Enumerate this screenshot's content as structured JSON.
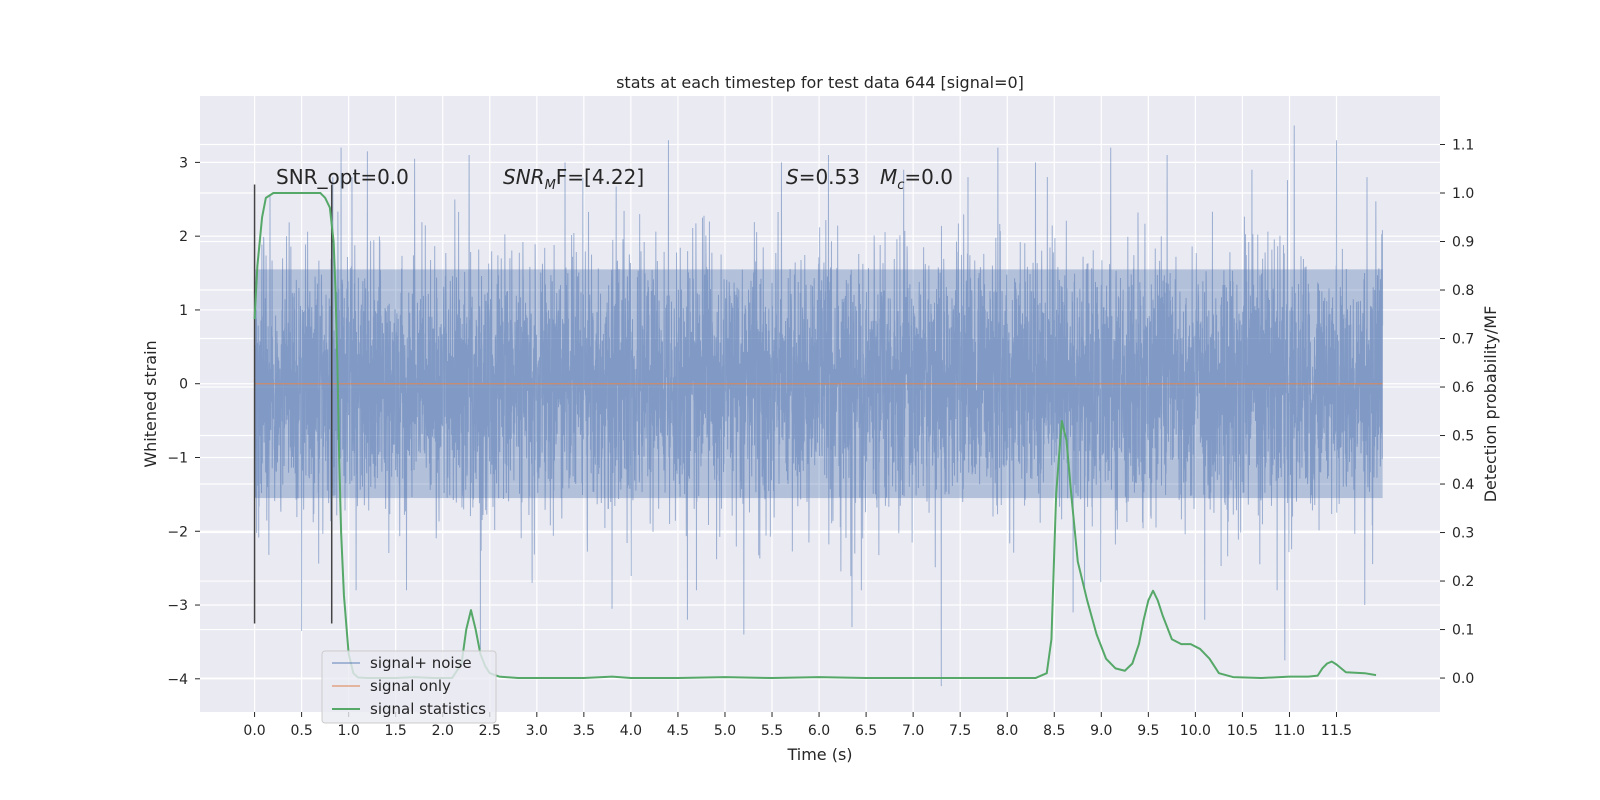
{
  "chart_data": {
    "type": "line",
    "title": "stats at each timestep for test data 644 [signal=0]",
    "xlabel": "Time (s)",
    "ylabel": "Whitened strain",
    "y2label": "Detection probability/MF",
    "xlim": [
      -0.58,
      12.6
    ],
    "ylim": [
      -4.45,
      3.9
    ],
    "y2lim": [
      -0.07,
      1.2
    ],
    "grid": true,
    "legend_placement": "lower-left",
    "xticks": [
      0.0,
      0.5,
      1.0,
      1.5,
      2.0,
      2.5,
      3.0,
      3.5,
      4.0,
      4.5,
      5.0,
      5.5,
      6.0,
      6.5,
      7.0,
      7.5,
      8.0,
      8.5,
      9.0,
      9.5,
      10.0,
      10.5,
      11.0,
      11.5
    ],
    "xtick_labels": [
      "0.0",
      "0.5",
      "1.0",
      "1.5",
      "2.0",
      "2.5",
      "3.0",
      "3.5",
      "4.0",
      "4.5",
      "5.0",
      "5.5",
      "6.0",
      "6.5",
      "7.0",
      "7.5",
      "8.0",
      "8.5",
      "9.0",
      "9.5",
      "10.0",
      "10.5",
      "11.0",
      "11.5"
    ],
    "yticks": [
      3,
      2,
      1,
      0,
      -1,
      -2,
      -3,
      -4
    ],
    "ytick_labels": [
      "3",
      "2",
      "1",
      "0",
      "−1",
      "−2",
      "−3",
      "−4"
    ],
    "y2ticks": [
      1.1,
      1.0,
      0.9,
      0.8,
      0.7,
      0.6,
      0.5,
      0.4,
      0.3,
      0.2,
      0.1,
      0.0
    ],
    "y2tick_labels": [
      "1.1",
      "1.0",
      "0.9",
      "0.8",
      "0.7",
      "0.6",
      "0.5",
      "0.4",
      "0.3",
      "0.2",
      "0.1",
      "0.0"
    ],
    "annotations": {
      "snr_opt": "SNR_opt=0.0",
      "snr_mf_main": "SNR",
      "snr_mf_sub": "M",
      "snr_mf_rest": "F=[4.22]",
      "s_main": "S",
      "s_rest": "=0.53",
      "mc_main": "M",
      "mc_sub": "c",
      "mc_rest": "=0.0"
    },
    "vlines": [
      {
        "x": 0.0,
        "ymin": -3.25,
        "ymax": 2.7
      },
      {
        "x": 0.82,
        "ymin": -3.25,
        "ymax": 2.7
      }
    ],
    "series": [
      {
        "name": "signal+ noise",
        "color": "#4c72b0",
        "axis": "left",
        "t_start": 0.0,
        "t_end": 11.99,
        "envelope_upper": 1.55,
        "envelope_lower": -1.55,
        "extremes": [
          {
            "x": 0.34,
            "y": 2.0
          },
          {
            "x": 0.5,
            "y": -3.35
          },
          {
            "x": 0.92,
            "y": 3.2
          },
          {
            "x": 1.2,
            "y": 3.15
          },
          {
            "x": 1.7,
            "y": 3.05
          },
          {
            "x": 2.28,
            "y": 3.1
          },
          {
            "x": 2.4,
            "y": -3.6
          },
          {
            "x": 2.95,
            "y": -2.7
          },
          {
            "x": 3.3,
            "y": 3.0
          },
          {
            "x": 3.8,
            "y": -3.05
          },
          {
            "x": 4.4,
            "y": 3.3
          },
          {
            "x": 4.6,
            "y": -3.2
          },
          {
            "x": 5.2,
            "y": -3.4
          },
          {
            "x": 5.6,
            "y": 3.0
          },
          {
            "x": 6.1,
            "y": 3.1
          },
          {
            "x": 6.35,
            "y": -3.3
          },
          {
            "x": 6.9,
            "y": 2.9
          },
          {
            "x": 7.3,
            "y": -4.1
          },
          {
            "x": 7.9,
            "y": 3.2
          },
          {
            "x": 8.3,
            "y": 3.0
          },
          {
            "x": 8.7,
            "y": -3.1
          },
          {
            "x": 9.1,
            "y": 3.2
          },
          {
            "x": 9.7,
            "y": 3.1
          },
          {
            "x": 10.1,
            "y": -3.2
          },
          {
            "x": 10.6,
            "y": 2.9
          },
          {
            "x": 10.95,
            "y": -3.75
          },
          {
            "x": 11.05,
            "y": 3.5
          },
          {
            "x": 11.5,
            "y": 3.3
          },
          {
            "x": 11.8,
            "y": -3.0
          }
        ]
      },
      {
        "name": "signal only",
        "color": "#dd8452",
        "axis": "left",
        "x": [
          0.0,
          11.99
        ],
        "y": [
          0.0,
          0.0
        ]
      },
      {
        "name": "signal statistics",
        "color": "#55a868",
        "axis": "right",
        "x": [
          0.0,
          0.03,
          0.08,
          0.12,
          0.2,
          0.3,
          0.4,
          0.5,
          0.6,
          0.7,
          0.75,
          0.8,
          0.84,
          0.86,
          0.88,
          0.9,
          0.92,
          0.95,
          1.0,
          1.05,
          1.1,
          1.2,
          1.5,
          1.7,
          1.9,
          2.1,
          2.2,
          2.25,
          2.3,
          2.35,
          2.4,
          2.45,
          2.5,
          2.6,
          2.8,
          3.2,
          3.5,
          3.8,
          4.0,
          4.5,
          5.0,
          5.5,
          6.0,
          6.5,
          7.0,
          7.5,
          8.0,
          8.3,
          8.42,
          8.47,
          8.52,
          8.58,
          8.63,
          8.68,
          8.75,
          8.85,
          8.95,
          9.05,
          9.15,
          9.25,
          9.33,
          9.4,
          9.45,
          9.5,
          9.55,
          9.6,
          9.65,
          9.75,
          9.85,
          9.95,
          10.05,
          10.15,
          10.25,
          10.4,
          10.7,
          11.0,
          11.2,
          11.3,
          11.35,
          11.4,
          11.45,
          11.5,
          11.6,
          11.8,
          11.92
        ],
        "y": [
          0.74,
          0.85,
          0.95,
          0.99,
          1.0,
          1.0,
          1.0,
          1.0,
          1.0,
          1.0,
          0.99,
          0.97,
          0.9,
          0.8,
          0.65,
          0.45,
          0.3,
          0.17,
          0.05,
          0.01,
          0.001,
          0.0,
          0.0,
          0.002,
          0.0,
          0.0,
          0.03,
          0.1,
          0.14,
          0.1,
          0.05,
          0.025,
          0.01,
          0.003,
          0.0,
          0.0,
          0.0,
          0.003,
          0.0,
          0.0,
          0.002,
          0.0,
          0.002,
          0.0,
          0.0,
          0.0,
          0.0,
          0.0,
          0.01,
          0.08,
          0.38,
          0.53,
          0.49,
          0.38,
          0.24,
          0.16,
          0.09,
          0.04,
          0.02,
          0.015,
          0.03,
          0.07,
          0.12,
          0.16,
          0.18,
          0.16,
          0.13,
          0.08,
          0.07,
          0.07,
          0.06,
          0.04,
          0.01,
          0.002,
          0.0,
          0.003,
          0.003,
          0.005,
          0.02,
          0.03,
          0.034,
          0.028,
          0.012,
          0.01,
          0.006
        ]
      }
    ]
  }
}
